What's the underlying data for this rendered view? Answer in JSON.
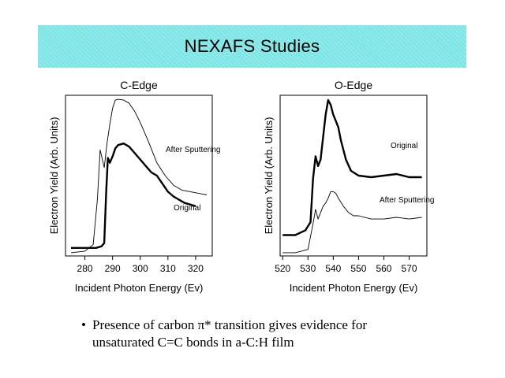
{
  "slide": {
    "title": "NEXAFS Studies",
    "bullet_line1": "Presence of carbon π* transition gives evidence for",
    "bullet_line2": "unsaturated C=C bonds in a-C:H film",
    "bullet_symbol": "•"
  },
  "colors": {
    "banner": "#7fe6e6",
    "line": "#000000"
  },
  "chart_data": [
    {
      "type": "line",
      "title": "C-Edge",
      "xlabel": "Incident Photon Energy (Ev)",
      "ylabel": "Electron Yield (Arb. Units)",
      "xlim": [
        273,
        326
      ],
      "ylim": [
        0,
        1
      ],
      "xticks": [
        280,
        290,
        300,
        310,
        320
      ],
      "grid": false,
      "annotations": [
        "After Sputtering",
        "Original"
      ],
      "series": [
        {
          "name": "After Sputtering",
          "x": [
            275,
            280,
            283,
            284.5,
            285.5,
            286.2,
            287,
            288,
            289,
            290,
            291,
            292,
            294,
            296,
            298,
            300,
            303,
            306,
            309,
            312,
            315,
            318,
            321,
            324
          ],
          "y": [
            0.02,
            0.03,
            0.07,
            0.35,
            0.66,
            0.61,
            0.55,
            0.7,
            0.82,
            0.92,
            0.97,
            0.975,
            0.97,
            0.95,
            0.9,
            0.83,
            0.71,
            0.58,
            0.5,
            0.44,
            0.41,
            0.4,
            0.39,
            0.38
          ]
        },
        {
          "name": "Original",
          "x": [
            275,
            280,
            284,
            286,
            287,
            287.7,
            288.3,
            289,
            290,
            291,
            292,
            294,
            296,
            298,
            300,
            302,
            304,
            306,
            308,
            310,
            312,
            314,
            316,
            318,
            320
          ],
          "y": [
            0.05,
            0.05,
            0.05,
            0.06,
            0.08,
            0.4,
            0.61,
            0.58,
            0.62,
            0.67,
            0.69,
            0.7,
            0.68,
            0.64,
            0.6,
            0.56,
            0.52,
            0.5,
            0.45,
            0.4,
            0.37,
            0.35,
            0.33,
            0.32,
            0.31
          ]
        }
      ]
    },
    {
      "type": "line",
      "title": "O-Edge",
      "xlabel": "Incident Photon Energy (Ev)",
      "ylabel": "Electron Yield (Arb. Units)",
      "xlim": [
        519,
        577
      ],
      "ylim": [
        0,
        1
      ],
      "xticks": [
        520,
        530,
        540,
        550,
        560,
        570
      ],
      "grid": false,
      "annotations": [
        "Original",
        "After Sputtering"
      ],
      "series": [
        {
          "name": "Original",
          "x": [
            520,
            525,
            529,
            531,
            532,
            533,
            534,
            535,
            536,
            537,
            538,
            539,
            540,
            541,
            542,
            543,
            545,
            547,
            550,
            555,
            560,
            565,
            570,
            575
          ],
          "y": [
            0.13,
            0.13,
            0.16,
            0.21,
            0.48,
            0.62,
            0.56,
            0.6,
            0.74,
            0.88,
            0.97,
            0.94,
            0.88,
            0.84,
            0.8,
            0.72,
            0.6,
            0.53,
            0.5,
            0.49,
            0.5,
            0.51,
            0.49,
            0.49
          ]
        },
        {
          "name": "After Sputtering",
          "x": [
            520,
            525,
            530,
            532,
            533,
            534,
            535,
            536,
            537,
            538,
            539,
            540,
            541,
            542,
            544,
            546,
            548,
            550,
            555,
            560,
            565,
            570,
            575
          ],
          "y": [
            0.02,
            0.02,
            0.04,
            0.2,
            0.29,
            0.23,
            0.27,
            0.31,
            0.33,
            0.36,
            0.4,
            0.4,
            0.39,
            0.36,
            0.31,
            0.27,
            0.25,
            0.25,
            0.23,
            0.23,
            0.24,
            0.23,
            0.24
          ]
        }
      ]
    }
  ]
}
